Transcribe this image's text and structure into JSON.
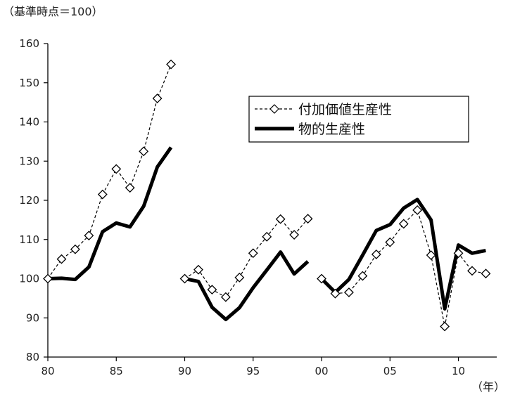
{
  "chart_data": {
    "type": "line",
    "ylabel": "（基準時点＝100）",
    "xlabel": "（年）",
    "ylim": [
      80,
      160
    ],
    "yticks": [
      80,
      90,
      100,
      110,
      120,
      130,
      140,
      150,
      160
    ],
    "xlim": [
      1980,
      2012.8
    ],
    "xticks": [
      {
        "value": 1980,
        "label": "80"
      },
      {
        "value": 1990,
        "label": "90"
      },
      {
        "value": 1995,
        "label": "95"
      },
      {
        "value": 2000,
        "label": "00"
      },
      {
        "value": 2005,
        "label": "05"
      },
      {
        "value": 2010,
        "label": "10"
      }
    ],
    "x_extra_ticks": [
      1985
    ],
    "x_extra_tick_labels": [
      "85"
    ],
    "grid": false,
    "legend_position": "top-right",
    "series": [
      {
        "name": "付加価値生産性",
        "style": "dashed-diamond",
        "color": "#000000",
        "segments": [
          [
            [
              1980,
              100
            ],
            [
              1981,
              105
            ],
            [
              1982,
              107.5
            ],
            [
              1983,
              111
            ],
            [
              1984,
              121.5
            ],
            [
              1985,
              128
            ],
            [
              1986,
              123.2
            ],
            [
              1987,
              132.5
            ],
            [
              1988,
              146
            ],
            [
              1989,
              154.7
            ]
          ],
          [
            [
              1990,
              100
            ],
            [
              1991,
              102.3
            ],
            [
              1992,
              97.2
            ],
            [
              1993,
              95.3
            ],
            [
              1994,
              100.3
            ],
            [
              1995,
              106.5
            ],
            [
              1996,
              110.7
            ],
            [
              1997,
              115.2
            ],
            [
              1998,
              111.2
            ],
            [
              1999,
              115.3
            ]
          ],
          [
            [
              2000,
              100
            ],
            [
              2001,
              96.2
            ],
            [
              2002,
              96.5
            ],
            [
              2003,
              100.7
            ],
            [
              2004,
              106.2
            ],
            [
              2005,
              109.3
            ],
            [
              2006,
              114
            ],
            [
              2007,
              117.5
            ],
            [
              2008,
              106
            ],
            [
              2009,
              87.8
            ],
            [
              2010,
              106.5
            ],
            [
              2011,
              102
            ],
            [
              2012,
              101.3
            ]
          ]
        ]
      },
      {
        "name": "物的生産性",
        "style": "thick-solid",
        "color": "#000000",
        "segments": [
          [
            [
              1980,
              100
            ],
            [
              1981,
              100.1
            ],
            [
              1982,
              99.8
            ],
            [
              1983,
              103
            ],
            [
              1984,
              112
            ],
            [
              1985,
              114.2
            ],
            [
              1986,
              113.2
            ],
            [
              1987,
              118.5
            ],
            [
              1988,
              128.5
            ],
            [
              1989,
              133.5
            ]
          ],
          [
            [
              1990,
              100
            ],
            [
              1991,
              99.3
            ],
            [
              1992,
              92.7
            ],
            [
              1993,
              89.6
            ],
            [
              1994,
              92.6
            ],
            [
              1995,
              97.7
            ],
            [
              1996,
              102.2
            ],
            [
              1997,
              106.8
            ],
            [
              1998,
              101.2
            ],
            [
              1999,
              104.4
            ]
          ],
          [
            [
              2000,
              100
            ],
            [
              2001,
              96.5
            ],
            [
              2002,
              99.8
            ],
            [
              2003,
              106
            ],
            [
              2004,
              112.3
            ],
            [
              2005,
              113.8
            ],
            [
              2006,
              118
            ],
            [
              2007,
              120.2
            ],
            [
              2008,
              115
            ],
            [
              2009,
              92.3
            ],
            [
              2010,
              108.6
            ],
            [
              2011,
              106.5
            ],
            [
              2012,
              107.2
            ]
          ]
        ]
      }
    ]
  }
}
